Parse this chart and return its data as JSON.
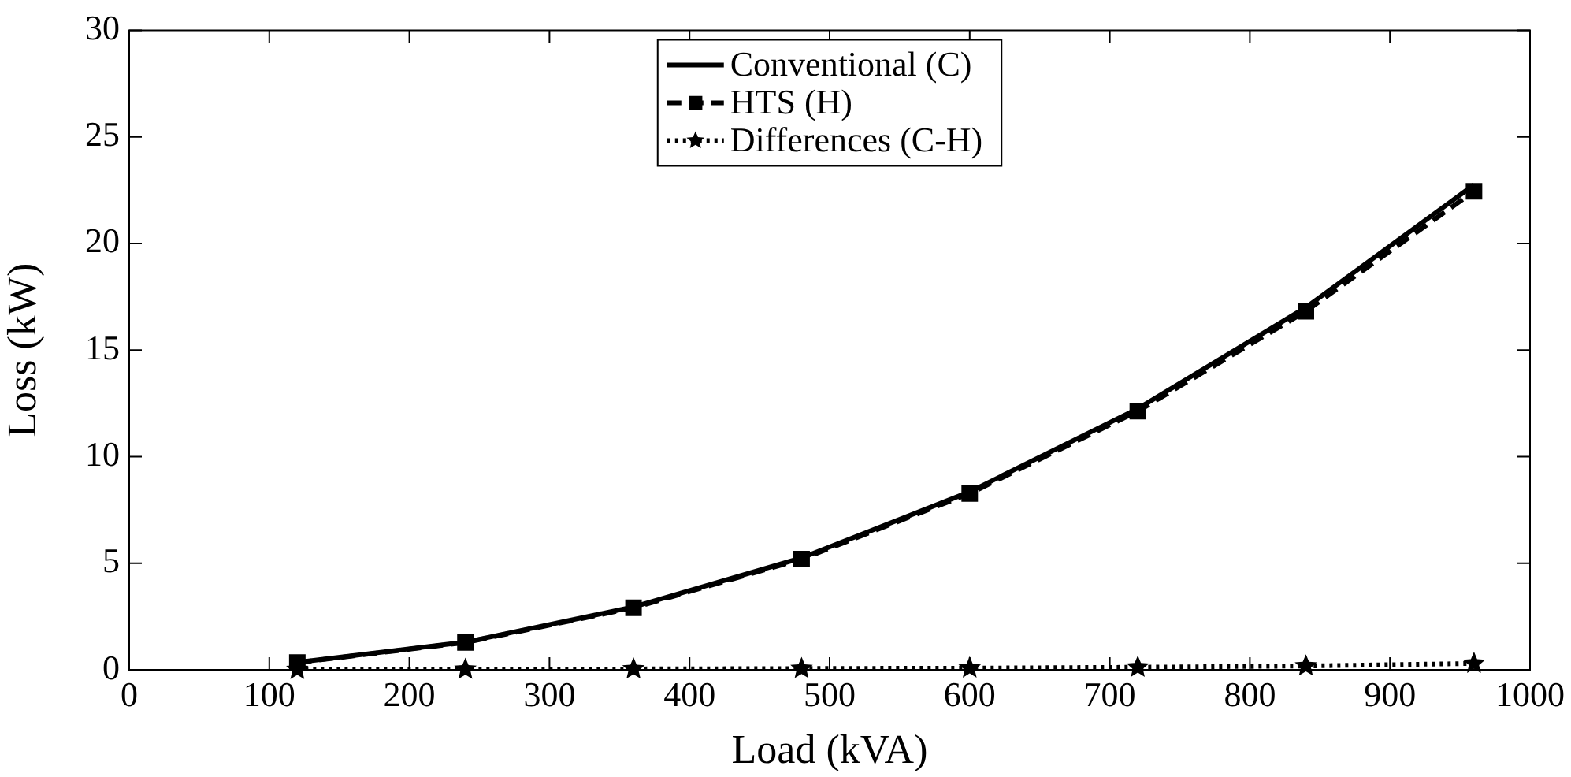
{
  "chart_data": {
    "type": "line",
    "xlabel": "Load (kVA)",
    "ylabel": "Loss (kW)",
    "x": [
      120,
      240,
      360,
      480,
      600,
      720,
      840,
      960
    ],
    "series": [
      {
        "name": "Conventional (C)",
        "color": "#000000",
        "values": [
          0.35,
          1.3,
          2.95,
          5.25,
          8.35,
          12.25,
          17.0,
          22.75
        ],
        "marker": "none",
        "line_style": "solid"
      },
      {
        "name": "HTS (H)",
        "color": "#000000",
        "values": [
          0.34,
          1.28,
          2.91,
          5.19,
          8.27,
          12.13,
          16.82,
          22.45
        ],
        "marker": "square",
        "line_style": "dashed"
      },
      {
        "name": "Differences (C-H)",
        "color": "#000000",
        "values": [
          0.01,
          0.02,
          0.04,
          0.06,
          0.08,
          0.12,
          0.18,
          0.3
        ],
        "marker": "star",
        "line_style": "dotted"
      }
    ],
    "xlim": [
      0,
      1000
    ],
    "xticks": [
      0,
      100,
      200,
      300,
      400,
      500,
      600,
      700,
      800,
      900,
      1000
    ],
    "ylim": [
      0,
      30
    ],
    "yticks": [
      0,
      5,
      10,
      15,
      20,
      25,
      30
    ],
    "grid": false,
    "legend": "top"
  }
}
